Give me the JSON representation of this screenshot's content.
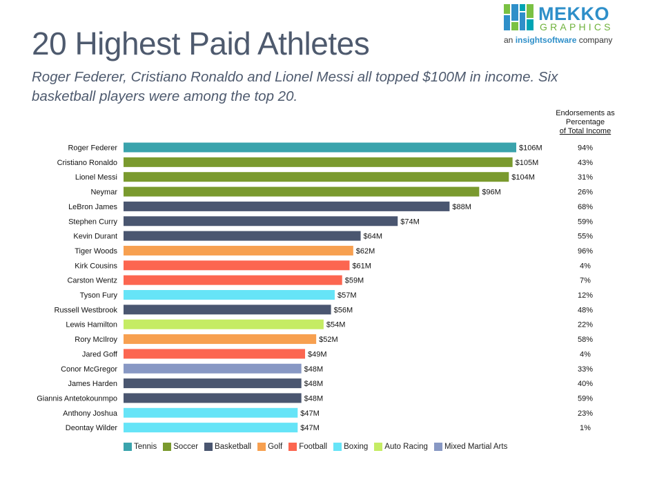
{
  "header": {
    "title": "20 Highest Paid Athletes",
    "subtitle": "Roger Federer, Cristiano Ronaldo and Lionel Messi all topped $100M in income.  Six basketball players were among the top 20."
  },
  "logo": {
    "word1": "MEKKO",
    "word2": "GRAPHICS",
    "tag_prefix": "an",
    "tag_brand": "insightsoftware",
    "tag_suffix": "company",
    "colors": [
      "#7ac143",
      "#2e8fc9",
      "#00a4b4"
    ]
  },
  "column_header": {
    "line1": "Endorsements as",
    "line2": "Percentage",
    "line3": "of Total Income"
  },
  "sport_colors": {
    "Tennis": "#3aa3ac",
    "Soccer": "#7a9a2e",
    "Basketball": "#4a5670",
    "Golf": "#f7a050",
    "Football": "#fc6650",
    "Boxing": "#66e4f7",
    "Auto Racing": "#c5ec64",
    "Mixed Martial Arts": "#8898c4"
  },
  "chart_data": {
    "type": "bar",
    "orientation": "horizontal",
    "title": "20 Highest Paid Athletes",
    "value_prefix": "$",
    "value_suffix": "M",
    "categories": [
      "Roger Federer",
      "Cristiano Ronaldo",
      "Lionel Messi",
      "Neymar",
      "LeBron James",
      "Stephen Curry",
      "Kevin Durant",
      "Tiger Woods",
      "Kirk Cousins",
      "Carston Wentz",
      "Tyson Fury",
      "Russell Westbrook",
      "Lewis Hamilton",
      "Rory McIlroy",
      "Jared Goff",
      "Conor McGregor",
      "James Harden",
      "Giannis Antetokounmpo",
      "Anthony Joshua",
      "Deontay Wilder"
    ],
    "values": [
      106,
      105,
      104,
      96,
      88,
      74,
      64,
      62,
      61,
      59,
      57,
      56,
      54,
      52,
      49,
      48,
      48,
      48,
      47,
      47
    ],
    "value_labels": [
      "$106M",
      "$105M",
      "$104M",
      "$96M",
      "$88M",
      "$74M",
      "$64M",
      "$62M",
      "$61M",
      "$59M",
      "$57M",
      "$56M",
      "$54M",
      "$52M",
      "$49M",
      "$48M",
      "$48M",
      "$48M",
      "$47M",
      "$47M"
    ],
    "sports": [
      "Tennis",
      "Soccer",
      "Soccer",
      "Soccer",
      "Basketball",
      "Basketball",
      "Basketball",
      "Golf",
      "Football",
      "Football",
      "Boxing",
      "Basketball",
      "Auto Racing",
      "Golf",
      "Football",
      "Mixed Martial Arts",
      "Basketball",
      "Basketball",
      "Boxing",
      "Boxing"
    ],
    "endorsement_pct": [
      "94%",
      "43%",
      "31%",
      "26%",
      "68%",
      "59%",
      "55%",
      "96%",
      "4%",
      "7%",
      "12%",
      "48%",
      "22%",
      "58%",
      "4%",
      "33%",
      "40%",
      "59%",
      "23%",
      "1%"
    ],
    "legend": [
      "Tennis",
      "Soccer",
      "Basketball",
      "Golf",
      "Football",
      "Boxing",
      "Auto Racing",
      "Mixed Martial Arts"
    ],
    "legend_placement": "bottom",
    "xlim": [
      0,
      106
    ],
    "grid": false
  }
}
